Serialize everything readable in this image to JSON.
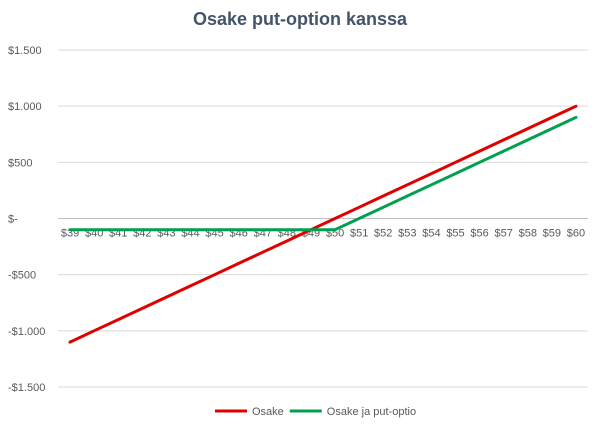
{
  "chart_data": {
    "type": "line",
    "title": "Osake put-option kanssa",
    "xlabel": "",
    "ylabel": "",
    "categories": [
      "$39",
      "$40",
      "$41",
      "$42",
      "$43",
      "$44",
      "$45",
      "$46",
      "$47",
      "$48",
      "$49",
      "$50",
      "$51",
      "$52",
      "$53",
      "$54",
      "$55",
      "$56",
      "$57",
      "$58",
      "$59",
      "$60"
    ],
    "y_ticks": [
      {
        "value": 1500,
        "label": "$1.500"
      },
      {
        "value": 1000,
        "label": "$1.000"
      },
      {
        "value": 500,
        "label": "$500"
      },
      {
        "value": 0,
        "label": "$-"
      },
      {
        "value": -500,
        "label": "-$500"
      },
      {
        "value": -1000,
        "label": "-$1.000"
      },
      {
        "value": -1500,
        "label": "-$1.500"
      }
    ],
    "ylim": [
      -1500,
      1500
    ],
    "grid": true,
    "legend_position": "bottom",
    "series": [
      {
        "name": "Osake",
        "color": "#e00000",
        "values": [
          -1100,
          -1000,
          -900,
          -800,
          -700,
          -600,
          -500,
          -400,
          -300,
          -200,
          -100,
          0,
          100,
          200,
          300,
          400,
          500,
          600,
          700,
          800,
          900,
          1000
        ]
      },
      {
        "name": "Osake ja put-optio",
        "color": "#00a050",
        "values": [
          -100,
          -100,
          -100,
          -100,
          -100,
          -100,
          -100,
          -100,
          -100,
          -100,
          -100,
          -100,
          0,
          100,
          200,
          300,
          400,
          500,
          600,
          700,
          800,
          900
        ]
      }
    ]
  }
}
